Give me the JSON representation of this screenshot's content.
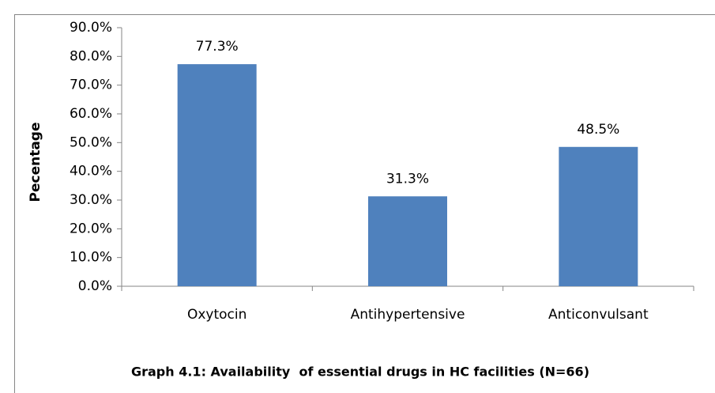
{
  "chart_data": {
    "type": "bar",
    "categories": [
      "Oxytocin",
      "Antihypertensive",
      "Anticonvulsant"
    ],
    "values": [
      77.3,
      31.3,
      48.5
    ],
    "value_labels": [
      "77.3%",
      "31.3%",
      "48.5%"
    ],
    "color": "#4f81bd",
    "ylabel": "Pecentage",
    "caption": "Graph 4.1: Availability  of essential drugs in HC facilities (N=66)",
    "ylim": [
      0,
      90
    ],
    "yticks": [
      {
        "value": 0,
        "label": "0.0%"
      },
      {
        "value": 10,
        "label": "10.0%"
      },
      {
        "value": 20,
        "label": "20.0%"
      },
      {
        "value": 30,
        "label": "30.0%"
      },
      {
        "value": 40,
        "label": "40.0%"
      },
      {
        "value": 50,
        "label": "50.0%"
      },
      {
        "value": 60,
        "label": "60.0%"
      },
      {
        "value": 70,
        "label": "70.0%"
      },
      {
        "value": 80,
        "label": "80.0%"
      },
      {
        "value": 90,
        "label": "90.0%"
      }
    ],
    "grid": false
  }
}
